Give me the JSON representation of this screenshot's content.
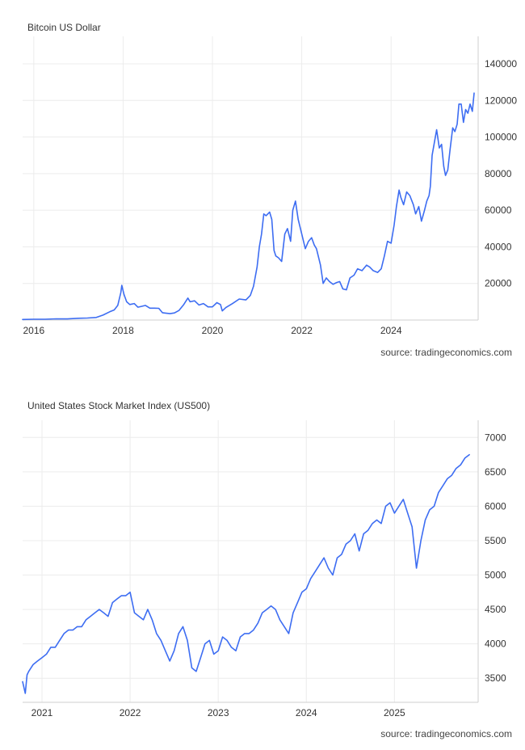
{
  "chart_data": [
    {
      "type": "line",
      "title": "Bitcoin US Dollar",
      "source": "source: tradingeconomics.com",
      "xlabel": "",
      "ylabel": "",
      "x_ticks": [
        2016,
        2018,
        2020,
        2022,
        2024
      ],
      "y_ticks": [
        20000,
        40000,
        60000,
        80000,
        100000,
        120000,
        140000
      ],
      "y_tick_labels": [
        "20000",
        "40000",
        "60000",
        "80000",
        "100000",
        "120000",
        "140000"
      ],
      "xlim": [
        2015.75,
        2025.95
      ],
      "ylim": [
        0,
        155000
      ],
      "line_color": "#3d6df2",
      "grid": true,
      "y_axis_side": "right",
      "series": [
        {
          "x": [
            2015.75,
            2016.0,
            2016.25,
            2016.5,
            2016.75,
            2017.0,
            2017.2,
            2017.4,
            2017.55,
            2017.7,
            2017.8,
            2017.88,
            2017.95,
            2017.97,
            2018.02,
            2018.08,
            2018.15,
            2018.25,
            2018.33,
            2018.42,
            2018.5,
            2018.6,
            2018.7,
            2018.8,
            2018.88,
            2018.95,
            2019.05,
            2019.15,
            2019.25,
            2019.35,
            2019.45,
            2019.5,
            2019.6,
            2019.7,
            2019.8,
            2019.9,
            2020.0,
            2020.1,
            2020.18,
            2020.22,
            2020.3,
            2020.45,
            2020.6,
            2020.75,
            2020.85,
            2020.92,
            2021.0,
            2021.05,
            2021.1,
            2021.15,
            2021.2,
            2021.28,
            2021.33,
            2021.38,
            2021.42,
            2021.48,
            2021.55,
            2021.62,
            2021.68,
            2021.75,
            2021.8,
            2021.86,
            2021.92,
            2022.0,
            2022.08,
            2022.15,
            2022.22,
            2022.28,
            2022.33,
            2022.42,
            2022.48,
            2022.55,
            2022.62,
            2022.7,
            2022.78,
            2022.85,
            2022.92,
            2023.0,
            2023.08,
            2023.17,
            2023.25,
            2023.35,
            2023.45,
            2023.52,
            2023.6,
            2023.7,
            2023.78,
            2023.85,
            2023.92,
            2024.0,
            2024.07,
            2024.12,
            2024.18,
            2024.22,
            2024.28,
            2024.35,
            2024.42,
            2024.5,
            2024.55,
            2024.62,
            2024.68,
            2024.75,
            2024.8,
            2024.85,
            2024.88,
            2024.92,
            2024.97,
            2025.02,
            2025.08,
            2025.13,
            2025.18,
            2025.22,
            2025.27,
            2025.32,
            2025.38,
            2025.43,
            2025.48,
            2025.52,
            2025.57,
            2025.62,
            2025.67,
            2025.72,
            2025.77,
            2025.82,
            2025.86
          ],
          "y": [
            300,
            430,
            420,
            650,
            610,
            950,
            1100,
            1400,
            2700,
            4500,
            5500,
            8000,
            15000,
            19000,
            14000,
            10000,
            8500,
            9000,
            7000,
            7500,
            8000,
            6500,
            6500,
            6400,
            4000,
            3800,
            3500,
            3900,
            5200,
            8200,
            12000,
            10000,
            10500,
            8200,
            9000,
            7200,
            7200,
            9500,
            8500,
            5000,
            6800,
            9000,
            11500,
            11000,
            13500,
            18500,
            29000,
            40000,
            47000,
            58000,
            57000,
            59000,
            55000,
            38000,
            35000,
            34000,
            32000,
            47000,
            50000,
            43000,
            60000,
            65000,
            55000,
            47000,
            39000,
            43000,
            45000,
            41000,
            39000,
            30000,
            20000,
            23000,
            21000,
            19500,
            20500,
            21000,
            17000,
            16500,
            23000,
            24500,
            28000,
            27000,
            30000,
            29000,
            27000,
            26000,
            28000,
            35000,
            43000,
            42000,
            52000,
            62000,
            71000,
            67000,
            63000,
            70000,
            68000,
            63000,
            58000,
            62000,
            54000,
            60000,
            65000,
            68000,
            73000,
            90000,
            97000,
            104000,
            94000,
            96000,
            84000,
            79000,
            82000,
            93000,
            105000,
            103000,
            107000,
            118000,
            118000,
            108000,
            115000,
            113000,
            118000,
            114000,
            124000
          ]
        }
      ]
    },
    {
      "type": "line",
      "title": "United States Stock Market Index (US500)",
      "source": "source: tradingeconomics.com",
      "xlabel": "",
      "ylabel": "",
      "x_ticks": [
        2021,
        2022,
        2023,
        2024,
        2025
      ],
      "y_ticks": [
        3500,
        4000,
        4500,
        5000,
        5500,
        6000,
        6500,
        7000
      ],
      "y_tick_labels": [
        "3500",
        "4000",
        "4500",
        "5000",
        "5500",
        "6000",
        "6500",
        "7000"
      ],
      "xlim": [
        2020.78,
        2025.95
      ],
      "ylim": [
        3150,
        7250
      ],
      "line_color": "#3d6df2",
      "grid": true,
      "y_axis_side": "right",
      "series": [
        {
          "x": [
            2020.78,
            2020.81,
            2020.83,
            2020.85,
            2020.9,
            2020.95,
            2021.0,
            2021.05,
            2021.1,
            2021.15,
            2021.2,
            2021.25,
            2021.3,
            2021.35,
            2021.4,
            2021.45,
            2021.5,
            2021.55,
            2021.6,
            2021.65,
            2021.7,
            2021.75,
            2021.8,
            2021.85,
            2021.9,
            2021.95,
            2022.0,
            2022.05,
            2022.1,
            2022.15,
            2022.2,
            2022.25,
            2022.3,
            2022.35,
            2022.4,
            2022.45,
            2022.5,
            2022.55,
            2022.6,
            2022.65,
            2022.7,
            2022.75,
            2022.8,
            2022.85,
            2022.9,
            2022.95,
            2023.0,
            2023.05,
            2023.1,
            2023.15,
            2023.2,
            2023.25,
            2023.3,
            2023.35,
            2023.4,
            2023.45,
            2023.5,
            2023.55,
            2023.6,
            2023.65,
            2023.7,
            2023.75,
            2023.8,
            2023.85,
            2023.9,
            2023.95,
            2024.0,
            2024.05,
            2024.1,
            2024.15,
            2024.2,
            2024.25,
            2024.3,
            2024.35,
            2024.4,
            2024.45,
            2024.5,
            2024.55,
            2024.6,
            2024.65,
            2024.7,
            2024.75,
            2024.8,
            2024.85,
            2024.9,
            2024.95,
            2025.0,
            2025.05,
            2025.1,
            2025.15,
            2025.2,
            2025.25,
            2025.3,
            2025.35,
            2025.4,
            2025.45,
            2025.5,
            2025.55,
            2025.6,
            2025.65,
            2025.7,
            2025.75,
            2025.8,
            2025.85
          ],
          "y": [
            3450,
            3280,
            3550,
            3600,
            3700,
            3750,
            3800,
            3850,
            3950,
            3950,
            4050,
            4150,
            4200,
            4200,
            4250,
            4250,
            4350,
            4400,
            4450,
            4500,
            4450,
            4400,
            4600,
            4650,
            4700,
            4700,
            4750,
            4450,
            4400,
            4350,
            4500,
            4350,
            4150,
            4050,
            3900,
            3750,
            3900,
            4150,
            4250,
            4050,
            3650,
            3600,
            3800,
            4000,
            4050,
            3850,
            3900,
            4100,
            4050,
            3950,
            3900,
            4100,
            4150,
            4150,
            4200,
            4300,
            4450,
            4500,
            4550,
            4500,
            4350,
            4250,
            4150,
            4450,
            4600,
            4750,
            4800,
            4950,
            5050,
            5150,
            5250,
            5100,
            5000,
            5250,
            5300,
            5450,
            5500,
            5600,
            5350,
            5600,
            5650,
            5750,
            5800,
            5750,
            6000,
            6050,
            5900,
            6000,
            6100,
            5900,
            5700,
            5100,
            5500,
            5800,
            5950,
            6000,
            6200,
            6300,
            6400,
            6450,
            6550,
            6600,
            6700,
            6750
          ]
        }
      ]
    }
  ]
}
